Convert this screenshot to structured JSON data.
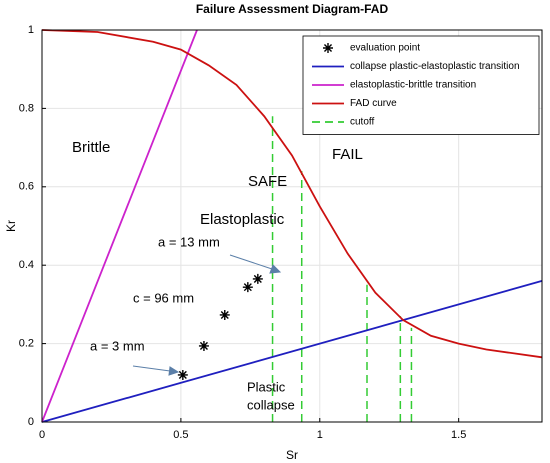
{
  "chart_data": {
    "type": "line",
    "title": "Failure Assessment Diagram-FAD",
    "x_label": "Sr",
    "y_label": "Kr",
    "xlim": [
      0,
      1.8
    ],
    "ylim": [
      0,
      1
    ],
    "xticks": [
      0,
      0.5,
      1,
      1.5
    ],
    "yticks": [
      0,
      0.2,
      0.4,
      0.6,
      0.8,
      1
    ],
    "grid": true,
    "legend": "upper right",
    "series": [
      {
        "name": "evaluation point",
        "color": "#000000",
        "marker": "asterisk",
        "x": [
          0.507,
          0.583,
          0.658,
          0.741,
          0.777
        ],
        "values": [
          0.12,
          0.194,
          0.273,
          0.344,
          0.365
        ]
      },
      {
        "name": "collapse plastic-elastoplastic transition",
        "color": "#1f1fbf",
        "x": [
          0,
          1.8
        ],
        "values": [
          0,
          0.36
        ]
      },
      {
        "name": "elastoplastic-brittle transition",
        "color": "#cc22cc",
        "x": [
          0,
          0.558
        ],
        "values": [
          0,
          1
        ]
      },
      {
        "name": "FAD curve",
        "color": "#cc1111",
        "x": [
          0,
          0.2,
          0.4,
          0.5,
          0.6,
          0.7,
          0.8,
          0.9,
          1.0,
          1.1,
          1.2,
          1.3,
          1.4,
          1.5,
          1.6,
          1.7,
          1.8
        ],
        "values": [
          1,
          0.995,
          0.97,
          0.95,
          0.91,
          0.86,
          0.78,
          0.68,
          0.55,
          0.43,
          0.33,
          0.26,
          0.22,
          0.2,
          0.185,
          0.175,
          0.165
        ]
      },
      {
        "name": "cutoff",
        "color": "#33cc33",
        "dashed": true,
        "x": [
          0.83,
          0.83,
          null,
          0.935,
          0.935,
          null,
          1.17,
          1.17,
          null,
          1.29,
          1.29,
          null,
          1.33,
          1.33
        ],
        "values": [
          0,
          0.78,
          null,
          0,
          0.64,
          null,
          0,
          0.35,
          null,
          0,
          0.27,
          null,
          0,
          0.24
        ]
      }
    ],
    "annotations": [
      "Brittle",
      "FAIL",
      "SAFE",
      "Elastoplastic",
      "a = 13 mm",
      "c = 96 mm",
      "a = 3 mm",
      "Plastic",
      "collapse"
    ]
  }
}
